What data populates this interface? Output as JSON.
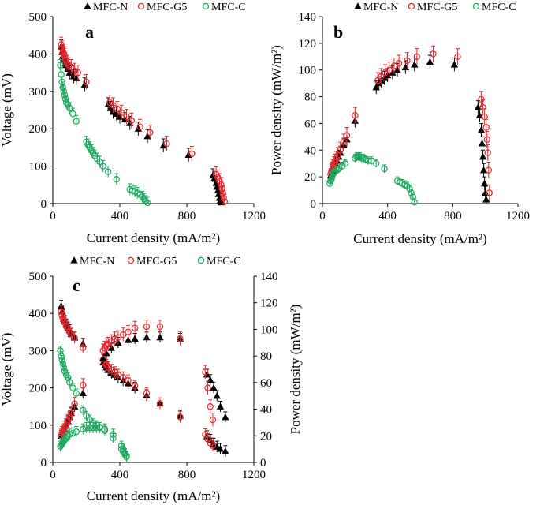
{
  "colors": {
    "mfc_n": "#000000",
    "mfc_g5": "#e8262b",
    "mfc_c": "#1aa85e",
    "axis": "#000000"
  },
  "legend_labels": {
    "mfc_n": "MFC-N",
    "mfc_g5": "MFC-G5",
    "mfc_c": "MFC-C"
  },
  "chart_data": [
    {
      "id": "a",
      "panel_label": "a",
      "type": "scatter",
      "xlabel": "Current density (mA/m²)",
      "ylabel": "Voltage (mV)",
      "xlim": [
        0,
        1200
      ],
      "ylim": [
        0,
        500
      ],
      "xticks": [
        0,
        400,
        800,
        1200
      ],
      "yticks": [
        0,
        100,
        200,
        300,
        400,
        500
      ],
      "series": [
        {
          "name": "MFC-N",
          "key": "mfc_n",
          "marker": "triangle",
          "err": 18,
          "x": [
            50,
            55,
            60,
            65,
            70,
            75,
            80,
            90,
            100,
            110,
            125,
            140,
            190,
            330,
            345,
            360,
            380,
            400,
            430,
            460,
            510,
            565,
            660,
            810,
            955,
            965,
            975,
            980,
            985,
            990,
            995,
            1000,
            1005
          ],
          "y": [
            420,
            405,
            395,
            390,
            385,
            375,
            370,
            360,
            350,
            350,
            340,
            335,
            318,
            265,
            255,
            245,
            240,
            232,
            225,
            215,
            200,
            180,
            155,
            130,
            75,
            68,
            55,
            45,
            35,
            25,
            15,
            8,
            3
          ]
        },
        {
          "name": "MFC-G5",
          "key": "mfc_g5",
          "marker": "circle",
          "err": 20,
          "x": [
            50,
            55,
            60,
            65,
            70,
            75,
            85,
            95,
            110,
            130,
            150,
            200,
            340,
            360,
            385,
            410,
            440,
            470,
            520,
            580,
            680,
            830,
            975,
            985,
            995,
            1005,
            1010,
            1015,
            1020,
            1025
          ],
          "y": [
            425,
            415,
            405,
            400,
            395,
            385,
            375,
            370,
            365,
            355,
            350,
            325,
            270,
            263,
            253,
            243,
            232,
            222,
            205,
            190,
            160,
            133,
            78,
            70,
            60,
            50,
            40,
            28,
            15,
            5
          ]
        },
        {
          "name": "MFC-C",
          "key": "mfc_c",
          "marker": "circle",
          "err": 15,
          "x": [
            45,
            50,
            55,
            60,
            65,
            70,
            75,
            80,
            90,
            100,
            120,
            140,
            200,
            210,
            220,
            230,
            240,
            250,
            265,
            280,
            300,
            330,
            380,
            460,
            475,
            490,
            505,
            520,
            535,
            545,
            555,
            565
          ],
          "y": [
            370,
            345,
            325,
            310,
            300,
            290,
            280,
            270,
            265,
            255,
            240,
            220,
            165,
            158,
            150,
            142,
            135,
            128,
            120,
            112,
            100,
            85,
            65,
            38,
            35,
            32,
            28,
            24,
            18,
            12,
            6,
            2
          ]
        }
      ]
    },
    {
      "id": "b",
      "panel_label": "b",
      "type": "scatter",
      "xlabel": "Current density (mA/m²)",
      "ylabel": "Power density (mW/m²)",
      "xlim": [
        0,
        1200
      ],
      "ylim": [
        0,
        140
      ],
      "xticks": [
        0,
        400,
        800,
        1200
      ],
      "yticks": [
        0,
        20,
        40,
        60,
        80,
        100,
        120,
        140
      ],
      "series": [
        {
          "name": "MFC-N",
          "key": "mfc_n",
          "marker": "triangle",
          "err": 5,
          "x": [
            50,
            60,
            70,
            80,
            90,
            100,
            110,
            130,
            150,
            200,
            330,
            345,
            360,
            380,
            400,
            430,
            460,
            510,
            565,
            660,
            810,
            955,
            965,
            975,
            980,
            985,
            990,
            995,
            1000,
            1005
          ],
          "y": [
            21,
            24,
            27,
            30,
            32,
            35,
            38,
            44,
            48,
            62,
            87,
            90,
            92,
            94,
            96,
            98,
            100,
            102,
            104,
            106,
            104,
            72,
            66,
            55,
            45,
            35,
            25,
            15,
            8,
            3
          ]
        },
        {
          "name": "MFC-G5",
          "key": "mfc_g5",
          "marker": "circle",
          "err": 6,
          "x": [
            50,
            55,
            60,
            65,
            70,
            75,
            85,
            95,
            110,
            130,
            150,
            200,
            340,
            360,
            385,
            410,
            440,
            470,
            520,
            580,
            680,
            830,
            975,
            985,
            995,
            1005,
            1010,
            1015,
            1020,
            1025
          ],
          "y": [
            22,
            24,
            25,
            27,
            29,
            31,
            33,
            36,
            40,
            46,
            51,
            66,
            92,
            95,
            98,
            100,
            103,
            105,
            107,
            110,
            112,
            110,
            78,
            72,
            65,
            57,
            48,
            38,
            25,
            8
          ]
        },
        {
          "name": "MFC-C",
          "key": "mfc_c",
          "marker": "circle",
          "err": 3,
          "x": [
            45,
            50,
            55,
            60,
            65,
            70,
            80,
            90,
            100,
            120,
            140,
            200,
            210,
            220,
            230,
            240,
            250,
            265,
            280,
            300,
            330,
            380,
            460,
            475,
            490,
            505,
            520,
            535,
            545,
            555,
            565
          ],
          "y": [
            15,
            17,
            18,
            20,
            22,
            23,
            24,
            25,
            26,
            28,
            30,
            34,
            35,
            35,
            35,
            34,
            34,
            33,
            32,
            32,
            30,
            26,
            17,
            16,
            15,
            14,
            13,
            11,
            8,
            5,
            1
          ]
        }
      ]
    },
    {
      "id": "c",
      "panel_label": "c",
      "type": "scatter",
      "xlabel": "Current density (mA/m²)",
      "ylabel": "Voltage (mV)",
      "ylabel_right": "Power density (mW/m²)",
      "xlim": [
        0,
        1200
      ],
      "ylim": [
        0,
        500
      ],
      "ylim_right": [
        0,
        140
      ],
      "xticks": [
        0,
        400,
        800,
        1200
      ],
      "yticks": [
        0,
        100,
        200,
        300,
        400,
        500
      ],
      "yticks_right": [
        0,
        20,
        40,
        60,
        80,
        100,
        120,
        140
      ],
      "series": [
        {
          "name": "MFC-N",
          "key": "mfc_n",
          "marker": "triangle",
          "err": 15,
          "axis": "left",
          "x": [
            50,
            55,
            60,
            65,
            70,
            80,
            90,
            100,
            110,
            130,
            180,
            300,
            310,
            320,
            330,
            350,
            370,
            390,
            420,
            450,
            490,
            560,
            640,
            760,
            920,
            940,
            960,
            980,
            1000,
            1030
          ],
          "y": [
            420,
            405,
            395,
            385,
            380,
            370,
            362,
            355,
            345,
            335,
            318,
            268,
            260,
            255,
            248,
            240,
            235,
            228,
            220,
            212,
            200,
            180,
            158,
            125,
            70,
            60,
            50,
            42,
            36,
            30
          ]
        },
        {
          "name": "MFC-G5",
          "key": "mfc_g5",
          "marker": "circle",
          "err": 15,
          "axis": "left",
          "x": [
            50,
            55,
            60,
            65,
            70,
            80,
            90,
            100,
            110,
            130,
            180,
            300,
            310,
            320,
            330,
            350,
            370,
            390,
            420,
            450,
            490,
            560,
            640,
            760,
            910,
            925,
            940,
            955
          ],
          "y": [
            405,
            395,
            388,
            380,
            375,
            365,
            358,
            350,
            345,
            335,
            308,
            275,
            268,
            262,
            255,
            248,
            242,
            235,
            228,
            220,
            205,
            185,
            158,
            122,
            75,
            62,
            52,
            45
          ]
        },
        {
          "name": "MFC-C",
          "key": "mfc_c",
          "marker": "circle",
          "err": 12,
          "axis": "left",
          "x": [
            45,
            50,
            55,
            60,
            65,
            70,
            80,
            90,
            100,
            120,
            140,
            180,
            200,
            220,
            240,
            260,
            280,
            310,
            360,
            410,
            420,
            430,
            440
          ],
          "y": [
            300,
            285,
            275,
            265,
            255,
            245,
            235,
            228,
            215,
            200,
            185,
            140,
            125,
            115,
            105,
            100,
            95,
            85,
            65,
            45,
            35,
            25,
            18
          ]
        },
        {
          "name": "MFC-N",
          "key": "mfc_n",
          "marker": "triangle",
          "err": 4,
          "axis": "right",
          "x": [
            50,
            60,
            70,
            80,
            90,
            100,
            110,
            130,
            180,
            300,
            320,
            350,
            390,
            450,
            490,
            560,
            640,
            760,
            920,
            940,
            960,
            980,
            1000,
            1030
          ],
          "y": [
            20,
            22,
            25,
            28,
            31,
            34,
            37,
            42,
            52,
            78,
            82,
            86,
            90,
            92,
            93,
            94,
            94,
            93,
            66,
            62,
            56,
            50,
            42,
            34
          ]
        },
        {
          "name": "MFC-G5",
          "key": "mfc_g5",
          "marker": "circle",
          "err": 5,
          "axis": "right",
          "x": [
            50,
            55,
            60,
            65,
            70,
            80,
            90,
            100,
            110,
            130,
            180,
            300,
            310,
            320,
            330,
            350,
            370,
            390,
            420,
            450,
            490,
            560,
            640,
            760,
            910,
            925,
            940,
            955
          ],
          "y": [
            20,
            22,
            23,
            24,
            26,
            28,
            31,
            34,
            37,
            44,
            58,
            84,
            86,
            88,
            89,
            91,
            93,
            94,
            96,
            98,
            101,
            102,
            102,
            93,
            68,
            56,
            42,
            32
          ]
        },
        {
          "name": "MFC-C",
          "key": "mfc_c",
          "marker": "circle",
          "err": 4,
          "axis": "right",
          "x": [
            45,
            50,
            55,
            60,
            65,
            70,
            80,
            90,
            100,
            120,
            140,
            180,
            200,
            220,
            240,
            260,
            280,
            310,
            360,
            410,
            420,
            430,
            440
          ],
          "y": [
            12,
            13,
            14,
            15,
            16,
            17,
            18,
            20,
            21,
            22,
            23,
            25,
            26,
            26,
            26,
            26,
            26,
            25,
            21,
            10,
            8,
            6,
            4
          ]
        }
      ]
    }
  ]
}
